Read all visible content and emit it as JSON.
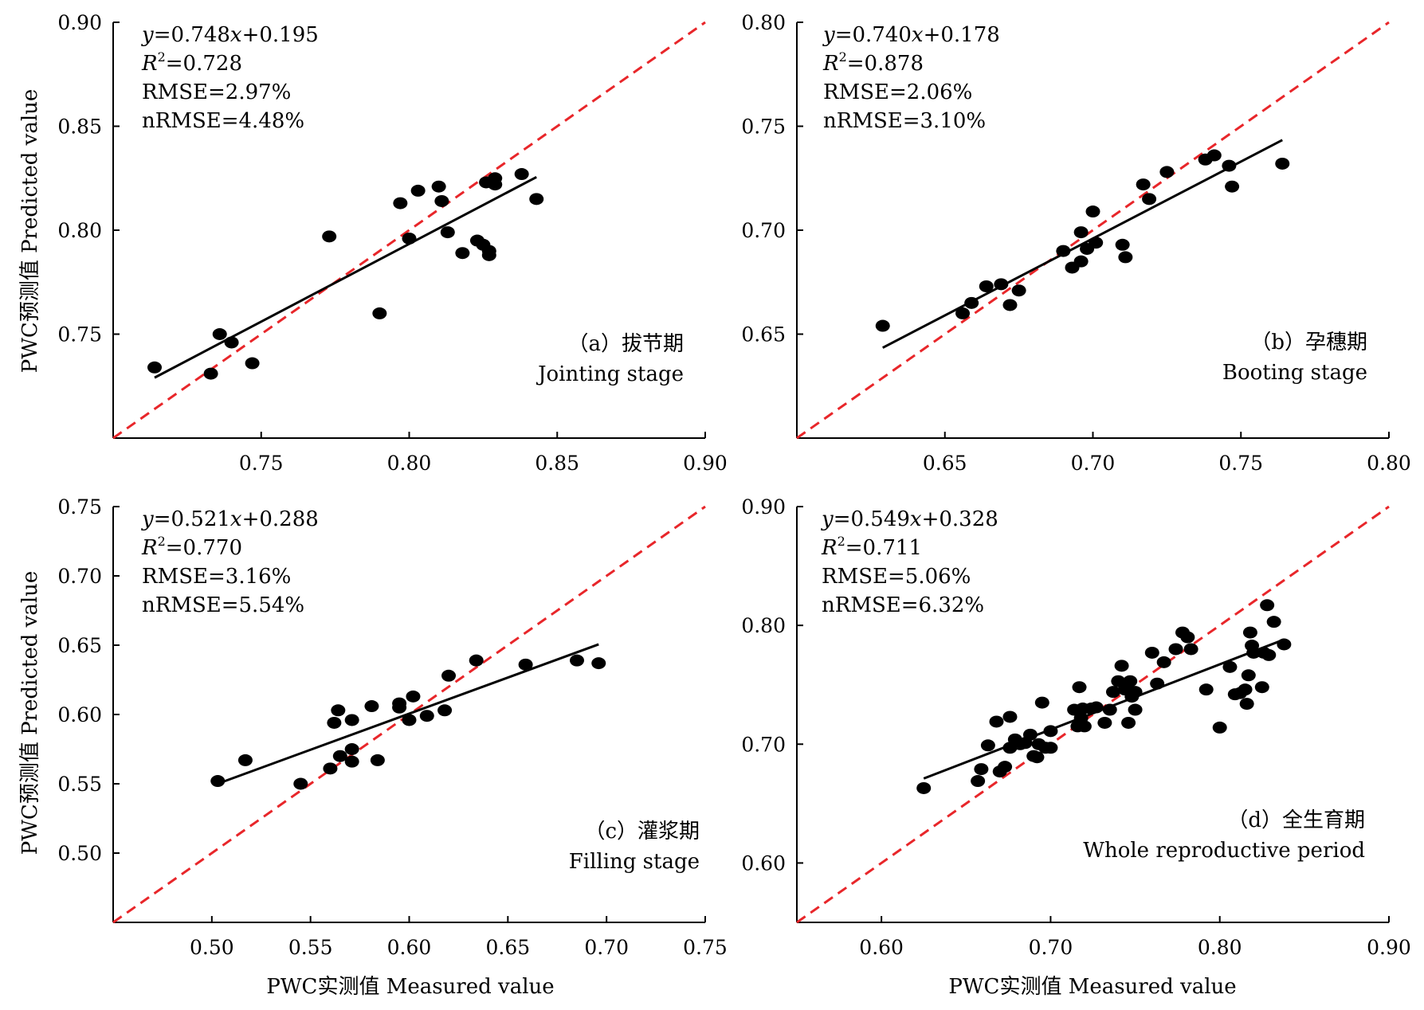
{
  "figure": {
    "ylabel": "PWC预测值 Predicted value",
    "xlabel": "PWC实测值 Measured value"
  },
  "colors": {
    "points": "#000000",
    "fit_line": "#000000",
    "reference_line": "#e8262a"
  },
  "chart_data": [
    {
      "id": "a",
      "type": "scatter",
      "xlim": [
        0.7,
        0.9
      ],
      "ylim": [
        0.7,
        0.9
      ],
      "xticks": [
        "0.75",
        "0.80",
        "0.85",
        "0.90"
      ],
      "yticks": [
        "0.75",
        "0.80",
        "0.85",
        "0.90"
      ],
      "xtick_values": [
        0.75,
        0.8,
        0.85,
        0.9
      ],
      "ytick_values": [
        0.75,
        0.8,
        0.85,
        0.9
      ],
      "equation_y": "y",
      "equation_rest": "=0.748",
      "equation_x": "x",
      "equation_tail": "+0.195",
      "r2_label": "R",
      "r2_sup": "2",
      "r2_value": "=0.728",
      "rmse": "RMSE=2.97%",
      "nrmse": "nRMSE=4.48%",
      "stage_cn": "（a）拔节期",
      "stage_en": "Jointing stage",
      "fit": {
        "slope": 0.748,
        "intercept": 0.195,
        "x_range": [
          0.714,
          0.843
        ]
      },
      "reference_line": "1:1",
      "points": [
        [
          0.714,
          0.734
        ],
        [
          0.733,
          0.731
        ],
        [
          0.736,
          0.75
        ],
        [
          0.74,
          0.746
        ],
        [
          0.747,
          0.736
        ],
        [
          0.773,
          0.797
        ],
        [
          0.79,
          0.76
        ],
        [
          0.797,
          0.813
        ],
        [
          0.8,
          0.796
        ],
        [
          0.803,
          0.819
        ],
        [
          0.81,
          0.821
        ],
        [
          0.811,
          0.814
        ],
        [
          0.813,
          0.799
        ],
        [
          0.818,
          0.789
        ],
        [
          0.823,
          0.795
        ],
        [
          0.825,
          0.793
        ],
        [
          0.826,
          0.823
        ],
        [
          0.827,
          0.79
        ],
        [
          0.827,
          0.788
        ],
        [
          0.829,
          0.825
        ],
        [
          0.829,
          0.822
        ],
        [
          0.838,
          0.827
        ],
        [
          0.843,
          0.815
        ]
      ]
    },
    {
      "id": "b",
      "type": "scatter",
      "xlim": [
        0.6,
        0.8
      ],
      "ylim": [
        0.6,
        0.8
      ],
      "xticks": [
        "0.65",
        "0.70",
        "0.75",
        "0.80"
      ],
      "yticks": [
        "0.65",
        "0.70",
        "0.75",
        "0.80"
      ],
      "xtick_values": [
        0.65,
        0.7,
        0.75,
        0.8
      ],
      "ytick_values": [
        0.65,
        0.7,
        0.75,
        0.8
      ],
      "equation_y": "y",
      "equation_rest": "=0.740",
      "equation_x": "x",
      "equation_tail": "+0.178",
      "r2_label": "R",
      "r2_sup": "2",
      "r2_value": "=0.878",
      "rmse": "RMSE=2.06%",
      "nrmse": "nRMSE=3.10%",
      "stage_cn": "（b）孕穗期",
      "stage_en": "Booting stage",
      "fit": {
        "slope": 0.74,
        "intercept": 0.178,
        "x_range": [
          0.629,
          0.764
        ]
      },
      "reference_line": "1:1",
      "points": [
        [
          0.629,
          0.654
        ],
        [
          0.656,
          0.66
        ],
        [
          0.659,
          0.665
        ],
        [
          0.664,
          0.673
        ],
        [
          0.669,
          0.674
        ],
        [
          0.672,
          0.664
        ],
        [
          0.675,
          0.671
        ],
        [
          0.69,
          0.69
        ],
        [
          0.693,
          0.682
        ],
        [
          0.696,
          0.699
        ],
        [
          0.696,
          0.685
        ],
        [
          0.698,
          0.691
        ],
        [
          0.7,
          0.709
        ],
        [
          0.701,
          0.694
        ],
        [
          0.71,
          0.693
        ],
        [
          0.711,
          0.687
        ],
        [
          0.717,
          0.722
        ],
        [
          0.719,
          0.715
        ],
        [
          0.725,
          0.728
        ],
        [
          0.738,
          0.734
        ],
        [
          0.741,
          0.736
        ],
        [
          0.746,
          0.731
        ],
        [
          0.747,
          0.721
        ],
        [
          0.764,
          0.732
        ]
      ]
    },
    {
      "id": "c",
      "type": "scatter",
      "xlim": [
        0.45,
        0.75
      ],
      "ylim": [
        0.45,
        0.75
      ],
      "xticks": [
        "0.50",
        "0.55",
        "0.60",
        "0.65",
        "0.70",
        "0.75"
      ],
      "yticks": [
        "0.50",
        "0.55",
        "0.60",
        "0.65",
        "0.70",
        "0.75"
      ],
      "xtick_values": [
        0.5,
        0.55,
        0.6,
        0.65,
        0.7,
        0.75
      ],
      "ytick_values": [
        0.5,
        0.55,
        0.6,
        0.65,
        0.7,
        0.75
      ],
      "equation_y": "y",
      "equation_rest": "=0.521",
      "equation_x": "x",
      "equation_tail": "+0.288",
      "r2_label": "R",
      "r2_sup": "2",
      "r2_value": "=0.770",
      "rmse": "RMSE=3.16%",
      "nrmse": "nRMSE=5.54%",
      "stage_cn": "（c）灌浆期",
      "stage_en": "Filling stage",
      "fit": {
        "slope": 0.521,
        "intercept": 0.288,
        "x_range": [
          0.503,
          0.696
        ]
      },
      "reference_line": "1:1",
      "points": [
        [
          0.503,
          0.552
        ],
        [
          0.517,
          0.567
        ],
        [
          0.545,
          0.55
        ],
        [
          0.56,
          0.561
        ],
        [
          0.562,
          0.594
        ],
        [
          0.564,
          0.603
        ],
        [
          0.565,
          0.57
        ],
        [
          0.571,
          0.596
        ],
        [
          0.571,
          0.575
        ],
        [
          0.571,
          0.566
        ],
        [
          0.581,
          0.606
        ],
        [
          0.584,
          0.567
        ],
        [
          0.595,
          0.608
        ],
        [
          0.595,
          0.605
        ],
        [
          0.6,
          0.596
        ],
        [
          0.602,
          0.613
        ],
        [
          0.609,
          0.599
        ],
        [
          0.618,
          0.603
        ],
        [
          0.62,
          0.628
        ],
        [
          0.634,
          0.639
        ],
        [
          0.659,
          0.636
        ],
        [
          0.685,
          0.639
        ],
        [
          0.696,
          0.637
        ]
      ]
    },
    {
      "id": "d",
      "type": "scatter",
      "xlim": [
        0.55,
        0.9
      ],
      "ylim": [
        0.55,
        0.9
      ],
      "xticks": [
        "0.60",
        "0.70",
        "0.80",
        "0.90"
      ],
      "yticks": [
        "0.60",
        "0.70",
        "0.80",
        "0.90"
      ],
      "xtick_values": [
        0.6,
        0.7,
        0.8,
        0.9
      ],
      "ytick_values": [
        0.6,
        0.7,
        0.8,
        0.9
      ],
      "equation_y": "y",
      "equation_rest": "=0.549",
      "equation_x": "x",
      "equation_tail": "+0.328",
      "r2_label": "R",
      "r2_sup": "2",
      "r2_value": "=0.711",
      "rmse": "RMSE=5.06%",
      "nrmse": "nRMSE=6.32%",
      "stage_cn": "（d）全生育期",
      "stage_en": "Whole reproductive period",
      "fit": {
        "slope": 0.549,
        "intercept": 0.328,
        "x_range": [
          0.625,
          0.838
        ]
      },
      "reference_line": "1:1",
      "points": [
        [
          0.625,
          0.663
        ],
        [
          0.657,
          0.669
        ],
        [
          0.659,
          0.679
        ],
        [
          0.663,
          0.699
        ],
        [
          0.668,
          0.719
        ],
        [
          0.67,
          0.677
        ],
        [
          0.673,
          0.681
        ],
        [
          0.676,
          0.723
        ],
        [
          0.676,
          0.697
        ],
        [
          0.679,
          0.704
        ],
        [
          0.682,
          0.7
        ],
        [
          0.685,
          0.701
        ],
        [
          0.688,
          0.708
        ],
        [
          0.69,
          0.69
        ],
        [
          0.692,
          0.689
        ],
        [
          0.693,
          0.7
        ],
        [
          0.695,
          0.735
        ],
        [
          0.697,
          0.697
        ],
        [
          0.7,
          0.711
        ],
        [
          0.7,
          0.697
        ],
        [
          0.714,
          0.729
        ],
        [
          0.716,
          0.715
        ],
        [
          0.717,
          0.748
        ],
        [
          0.718,
          0.722
        ],
        [
          0.719,
          0.73
        ],
        [
          0.72,
          0.715
        ],
        [
          0.724,
          0.73
        ],
        [
          0.727,
          0.731
        ],
        [
          0.732,
          0.718
        ],
        [
          0.735,
          0.729
        ],
        [
          0.737,
          0.744
        ],
        [
          0.74,
          0.753
        ],
        [
          0.742,
          0.766
        ],
        [
          0.744,
          0.746
        ],
        [
          0.746,
          0.718
        ],
        [
          0.747,
          0.753
        ],
        [
          0.748,
          0.74
        ],
        [
          0.75,
          0.744
        ],
        [
          0.75,
          0.729
        ],
        [
          0.76,
          0.777
        ],
        [
          0.763,
          0.751
        ],
        [
          0.767,
          0.769
        ],
        [
          0.774,
          0.78
        ],
        [
          0.778,
          0.794
        ],
        [
          0.781,
          0.79
        ],
        [
          0.783,
          0.78
        ],
        [
          0.792,
          0.746
        ],
        [
          0.8,
          0.714
        ],
        [
          0.806,
          0.765
        ],
        [
          0.809,
          0.742
        ],
        [
          0.812,
          0.743
        ],
        [
          0.815,
          0.746
        ],
        [
          0.816,
          0.734
        ],
        [
          0.817,
          0.758
        ],
        [
          0.818,
          0.794
        ],
        [
          0.819,
          0.783
        ],
        [
          0.82,
          0.777
        ],
        [
          0.825,
          0.748
        ],
        [
          0.826,
          0.777
        ],
        [
          0.828,
          0.817
        ],
        [
          0.829,
          0.775
        ],
        [
          0.832,
          0.803
        ],
        [
          0.838,
          0.784
        ]
      ]
    }
  ]
}
